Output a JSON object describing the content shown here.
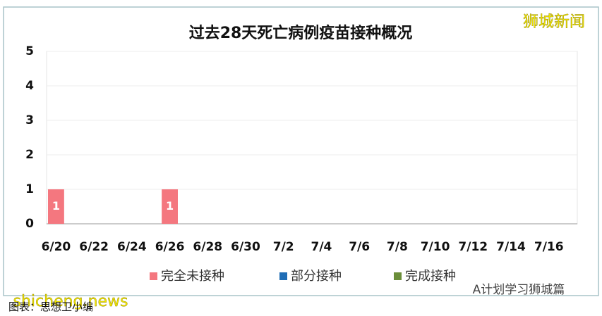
{
  "chart_data": {
    "type": "bar",
    "stacked": true,
    "title": "过去28天死亡病例疫苗接种概况",
    "categories": [
      "6/20",
      null,
      "6/22",
      null,
      "6/24",
      null,
      "6/26",
      null,
      "6/28",
      null,
      "6/30",
      null,
      "7/2",
      null,
      "7/4",
      null,
      "7/6",
      null,
      "7/8",
      null,
      "7/10",
      null,
      "7/12",
      null,
      "7/14",
      null,
      "7/16",
      null
    ],
    "series": [
      {
        "name": "完全未接种",
        "color": "#f4777f",
        "values": [
          1,
          0,
          0,
          0,
          0,
          0,
          1,
          0,
          0,
          0,
          0,
          0,
          0,
          0,
          0,
          0,
          0,
          0,
          0,
          0,
          0,
          0,
          0,
          0,
          0,
          0,
          0,
          0
        ]
      },
      {
        "name": "部分接种",
        "color": "#1f6db5",
        "values": [
          0,
          0,
          0,
          0,
          0,
          0,
          0,
          0,
          0,
          0,
          0,
          0,
          0,
          0,
          0,
          0,
          0,
          0,
          0,
          0,
          0,
          0,
          0,
          0,
          0,
          0,
          0,
          0
        ]
      },
      {
        "name": "完成接种",
        "color": "#6b8e3a",
        "values": [
          0,
          0,
          0,
          0,
          0,
          0,
          0,
          0,
          0,
          0,
          0,
          0,
          0,
          0,
          0,
          0,
          0,
          0,
          0,
          0,
          0,
          0,
          0,
          0,
          0,
          0,
          0,
          0
        ]
      }
    ],
    "ylim": [
      0,
      5
    ],
    "yticks": [
      0,
      1,
      2,
      3,
      4,
      5
    ],
    "grid": true,
    "legend": "bottom"
  },
  "watermarks": {
    "top_right": "狮城新闻",
    "bottom_left": "shicheng.news",
    "bottom_right": "A计划学习狮城篇",
    "caption": "图表：思想卫小编"
  }
}
